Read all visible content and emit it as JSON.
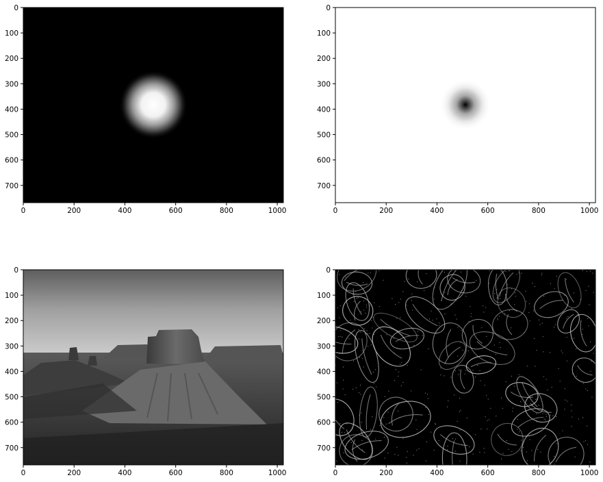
{
  "chart_data": [
    {
      "type": "image",
      "content": "gaussian low-pass filter mask (bright blob on black)",
      "xlim": [
        0,
        1024
      ],
      "ylim": [
        768,
        0
      ],
      "xticks": [
        0,
        200,
        400,
        600,
        800,
        1000
      ],
      "yticks": [
        0,
        100,
        200,
        300,
        400,
        500,
        600,
        700
      ],
      "blob_center": [
        512,
        384
      ]
    },
    {
      "type": "image",
      "content": "gaussian high-pass filter mask (dark point on white)",
      "xlim": [
        0,
        1024
      ],
      "ylim": [
        768,
        0
      ],
      "xticks": [
        0,
        200,
        400,
        600,
        800,
        1000
      ],
      "yticks": [
        0,
        100,
        200,
        300,
        400,
        500,
        600,
        700
      ],
      "blob_center": [
        512,
        384
      ]
    },
    {
      "type": "image",
      "content": "low-pass filtered grayscale photo of desert mesa landscape",
      "xlim": [
        0,
        1024
      ],
      "ylim": [
        768,
        0
      ],
      "xticks": [
        0,
        200,
        400,
        600,
        800,
        1000
      ],
      "yticks": [
        0,
        100,
        200,
        300,
        400,
        500,
        600,
        700
      ]
    },
    {
      "type": "image",
      "content": "high-pass filtered image showing edges of coffee beans",
      "xlim": [
        0,
        1024
      ],
      "ylim": [
        768,
        0
      ],
      "xticks": [
        0,
        200,
        400,
        600,
        800,
        1000
      ],
      "yticks": [
        0,
        100,
        200,
        300,
        400,
        500,
        600,
        700
      ]
    }
  ]
}
